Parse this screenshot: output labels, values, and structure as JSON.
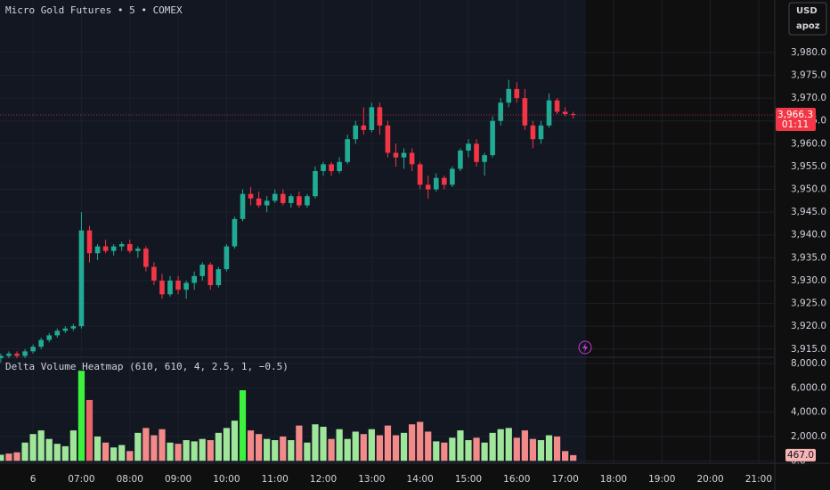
{
  "chart_data": [
    {
      "type": "candlestick",
      "title": "Micro Gold Futures • 5 • COMEX",
      "currency": "USD",
      "account": "apoz",
      "up_color": "#22ab94",
      "down_color": "#f23645",
      "x": [
        320,
        330,
        340,
        350,
        360,
        370,
        380,
        390,
        400,
        410,
        420,
        430,
        440,
        450,
        460,
        470,
        480,
        490,
        500,
        510,
        520,
        530,
        540,
        550,
        560,
        570,
        580,
        590,
        600,
        610,
        620,
        630,
        640,
        650,
        660,
        670,
        680,
        690,
        700,
        710,
        720,
        730,
        740,
        750,
        760,
        770,
        780,
        790,
        800,
        810,
        820,
        830,
        840,
        850,
        860,
        870,
        880,
        890,
        900,
        910,
        920,
        930,
        940,
        950,
        960,
        970,
        980,
        990,
        1000,
        1010,
        1020,
        1030
      ],
      "open": [
        3913,
        3913.5,
        3914,
        3913.5,
        3914.5,
        3915.5,
        3917,
        3918,
        3919,
        3919.5,
        3920,
        3941,
        3936,
        3937.5,
        3936.5,
        3937.5,
        3938,
        3936.5,
        3937,
        3933,
        3930,
        3927,
        3930,
        3928,
        3929.5,
        3931,
        3933.5,
        3929,
        3932.5,
        3937.5,
        3943.5,
        3949,
        3948,
        3946.5,
        3947.5,
        3949,
        3947,
        3948.5,
        3946.5,
        3948.5,
        3954,
        3955.5,
        3954,
        3956,
        3961,
        3964,
        3963,
        3968,
        3964,
        3958,
        3957,
        3958,
        3955.5,
        3951,
        3950,
        3952.5,
        3951,
        3954.5,
        3958.5,
        3960,
        3956,
        3957.5,
        3965,
        3969,
        3972,
        3970,
        3964,
        3961,
        3964,
        3969.5,
        3967,
        3966.5
      ],
      "high": [
        3914,
        3914.5,
        3914.5,
        3915,
        3916,
        3917.5,
        3918.5,
        3919.5,
        3920,
        3920.5,
        3945,
        3942,
        3938,
        3939,
        3938,
        3938.5,
        3939,
        3937.5,
        3937.5,
        3934,
        3931.5,
        3931,
        3931,
        3930,
        3932,
        3934,
        3934,
        3933,
        3938,
        3944,
        3950,
        3950.5,
        3949.5,
        3948.5,
        3950,
        3950,
        3949,
        3949.5,
        3949,
        3955,
        3956,
        3956,
        3957,
        3962,
        3965,
        3968,
        3969,
        3969,
        3965,
        3960,
        3959,
        3959,
        3956,
        3953,
        3953.5,
        3953,
        3955,
        3959,
        3961,
        3961,
        3958,
        3966,
        3970,
        3974,
        3973.5,
        3972,
        3965,
        3965,
        3971,
        3970,
        3968,
        3967
      ],
      "low": [
        3912,
        3913,
        3913,
        3913,
        3914,
        3915,
        3916.5,
        3917.5,
        3918.5,
        3919,
        3919.5,
        3934,
        3934.5,
        3936,
        3935.5,
        3936.5,
        3936,
        3935,
        3932,
        3929,
        3926,
        3926.5,
        3927,
        3926,
        3928,
        3930,
        3928,
        3928.5,
        3932,
        3937,
        3943,
        3946.5,
        3946,
        3945,
        3947,
        3946.5,
        3946,
        3946,
        3946,
        3948,
        3953,
        3953,
        3953.5,
        3955.5,
        3960,
        3962,
        3962.5,
        3962,
        3957,
        3955,
        3954.5,
        3954,
        3950,
        3948,
        3949.5,
        3950,
        3950.5,
        3954,
        3957,
        3955,
        3953,
        3957,
        3964,
        3968,
        3969,
        3963,
        3959,
        3960,
        3963.5,
        3966.5,
        3966,
        3965.5
      ],
      "close": [
        3913.5,
        3914,
        3913.5,
        3914.5,
        3915.5,
        3917,
        3918,
        3919,
        3919.5,
        3920,
        3941,
        3936,
        3937.5,
        3936.5,
        3937.5,
        3938,
        3936.5,
        3937,
        3933,
        3930,
        3927,
        3930,
        3928,
        3929.5,
        3931,
        3933.5,
        3929,
        3932.5,
        3937.5,
        3943.5,
        3949,
        3948,
        3946.5,
        3947.5,
        3949,
        3947,
        3948.5,
        3946.5,
        3948.5,
        3954,
        3955.5,
        3954,
        3956,
        3961,
        3964,
        3963,
        3968,
        3964,
        3958,
        3957,
        3958,
        3955.5,
        3951,
        3950,
        3952.5,
        3951,
        3954.5,
        3958.5,
        3960,
        3956,
        3957.5,
        3965,
        3969,
        3972,
        3970,
        3964,
        3961,
        3964,
        3969.5,
        3967,
        3966.5,
        3966.3
      ],
      "xlim": [
        319,
        1280
      ],
      "xticks": [
        {
          "value": 360,
          "label": "6"
        },
        {
          "value": 420,
          "label": "07:00"
        },
        {
          "value": 480,
          "label": "08:00"
        },
        {
          "value": 540,
          "label": "09:00"
        },
        {
          "value": 600,
          "label": "10:00"
        },
        {
          "value": 660,
          "label": "11:00"
        },
        {
          "value": 720,
          "label": "12:00"
        },
        {
          "value": 780,
          "label": "13:00"
        },
        {
          "value": 840,
          "label": "14:00"
        },
        {
          "value": 900,
          "label": "15:00"
        },
        {
          "value": 960,
          "label": "16:00"
        },
        {
          "value": 1020,
          "label": "17:00"
        },
        {
          "value": 1080,
          "label": "18:00"
        },
        {
          "value": 1140,
          "label": "19:00"
        },
        {
          "value": 1200,
          "label": "20:00"
        },
        {
          "value": 1260,
          "label": "21:00"
        }
      ],
      "ylim": [
        3913.2,
        3991.5
      ],
      "yticks": [
        {
          "value": 3915,
          "label": "3,915.0"
        },
        {
          "value": 3920,
          "label": "3,920.0"
        },
        {
          "value": 3925,
          "label": "3,925.0"
        },
        {
          "value": 3930,
          "label": "3,930.0"
        },
        {
          "value": 3935,
          "label": "3,935.0"
        },
        {
          "value": 3940,
          "label": "3,940.0"
        },
        {
          "value": 3945,
          "label": "3,945.0"
        },
        {
          "value": 3950,
          "label": "3,950.0"
        },
        {
          "value": 3955,
          "label": "3,955.0"
        },
        {
          "value": 3960,
          "label": "3,960.0"
        },
        {
          "value": 3965,
          "label": "3,965.0"
        },
        {
          "value": 3970,
          "label": "3,970.0"
        },
        {
          "value": 3975,
          "label": "3,975.0"
        },
        {
          "value": 3980,
          "label": "3,980.0"
        }
      ],
      "last_price": {
        "value": 3966.3,
        "label": "3,966.3"
      },
      "countdown": "01:11"
    },
    {
      "type": "bar",
      "title": "Delta Volume Heatmap (610, 610, 4, 2.5, 1, −0.5)",
      "x": [
        320,
        330,
        340,
        350,
        360,
        370,
        380,
        390,
        400,
        410,
        420,
        430,
        440,
        450,
        460,
        470,
        480,
        490,
        500,
        510,
        520,
        530,
        540,
        550,
        560,
        570,
        580,
        590,
        600,
        610,
        620,
        630,
        640,
        650,
        660,
        670,
        680,
        690,
        700,
        710,
        720,
        730,
        740,
        750,
        760,
        770,
        780,
        790,
        800,
        810,
        820,
        830,
        840,
        850,
        860,
        870,
        880,
        890,
        900,
        910,
        920,
        930,
        940,
        950,
        960,
        970,
        980,
        990,
        1000,
        1010,
        1020,
        1030
      ],
      "values": [
        500,
        600,
        700,
        1500,
        2200,
        2500,
        1800,
        1400,
        1200,
        2500,
        7400,
        5000,
        2000,
        1500,
        1100,
        1300,
        800,
        2300,
        2700,
        2100,
        2600,
        1500,
        1400,
        1700,
        1600,
        1800,
        1700,
        2300,
        2700,
        3300,
        5800,
        2500,
        2200,
        1800,
        1700,
        2000,
        1700,
        2900,
        1500,
        3000,
        2800,
        1800,
        2600,
        1800,
        2400,
        2200,
        2600,
        2100,
        2900,
        2100,
        2300,
        3000,
        3200,
        2400,
        1600,
        1500,
        1900,
        2500,
        1700,
        1900,
        1500,
        2300,
        2600,
        2700,
        1900,
        2500,
        1800,
        1700,
        2100,
        2000,
        800,
        467
      ],
      "colors": [
        "#9fe59a",
        "#f28a8a",
        "#f28a8a",
        "#9fe59a",
        "#9fe59a",
        "#9fe59a",
        "#9fe59a",
        "#9fe59a",
        "#9fe59a",
        "#9fe59a",
        "#3df23d",
        "#e8656b",
        "#9fe59a",
        "#f28a8a",
        "#9fe59a",
        "#9fe59a",
        "#f28a8a",
        "#9fe59a",
        "#f28a8a",
        "#f28a8a",
        "#f28a8a",
        "#9fe59a",
        "#f28a8a",
        "#9fe59a",
        "#9fe59a",
        "#9fe59a",
        "#f28a8a",
        "#9fe59a",
        "#9fe59a",
        "#9fe59a",
        "#3df23d",
        "#f28a8a",
        "#f28a8a",
        "#9fe59a",
        "#9fe59a",
        "#f28a8a",
        "#9fe59a",
        "#f28a8a",
        "#9fe59a",
        "#9fe59a",
        "#9fe59a",
        "#f28a8a",
        "#9fe59a",
        "#9fe59a",
        "#9fe59a",
        "#f28a8a",
        "#9fe59a",
        "#f28a8a",
        "#f28a8a",
        "#f28a8a",
        "#9fe59a",
        "#f28a8a",
        "#f28a8a",
        "#f28a8a",
        "#9fe59a",
        "#f28a8a",
        "#9fe59a",
        "#9fe59a",
        "#9fe59a",
        "#f28a8a",
        "#9fe59a",
        "#9fe59a",
        "#9fe59a",
        "#9fe59a",
        "#f28a8a",
        "#f28a8a",
        "#f28a8a",
        "#9fe59a",
        "#9fe59a",
        "#f28a8a",
        "#f28a8a",
        "#f28a8a"
      ],
      "ylim": [
        -200,
        8436
      ],
      "yticks": [
        {
          "value": 0,
          "label": "0.0"
        },
        {
          "value": 2000,
          "label": "2,000.0"
        },
        {
          "value": 4000,
          "label": "4,000.0"
        },
        {
          "value": 6000,
          "label": "6,000.0"
        },
        {
          "value": 8000,
          "label": "8,000.0"
        }
      ],
      "last_value": {
        "value": 467,
        "label": "467.0"
      }
    }
  ]
}
